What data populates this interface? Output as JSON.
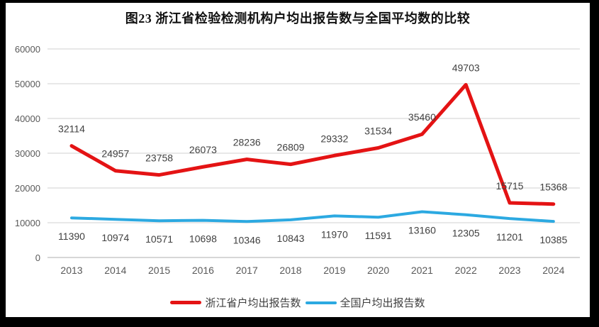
{
  "frame": {
    "outer_background": "#000000",
    "canvas_background": "#ffffff"
  },
  "chart_data": {
    "type": "line",
    "title": "图23  浙江省检验检测机构户均出报告数与全国平均数的比较",
    "categories": [
      "2013",
      "2014",
      "2015",
      "2016",
      "2017",
      "2018",
      "2019",
      "2020",
      "2021",
      "2022",
      "2023",
      "2024"
    ],
    "series": [
      {
        "name": "浙江省户均出报告数",
        "color": "#E41314",
        "line_width": 5,
        "label_side": "above",
        "values": [
          32114,
          24957,
          23758,
          26073,
          28236,
          26809,
          29332,
          31534,
          35460,
          49703,
          15715,
          15368
        ]
      },
      {
        "name": "全国户均出报告数",
        "color": "#2CA9E1",
        "line_width": 4,
        "label_side": "below",
        "values": [
          11390,
          10974,
          10571,
          10698,
          10346,
          10843,
          11970,
          11591,
          13160,
          12305,
          11201,
          10385
        ]
      }
    ],
    "y_ticks": [
      0,
      10000,
      20000,
      30000,
      40000,
      50000,
      60000
    ],
    "ylim": [
      0,
      60000
    ],
    "xlabel": "",
    "ylabel": "",
    "grid": true,
    "legend_position": "bottom",
    "gridline_color": "#D9D9D9",
    "axis_line_color": "#BFBFBF",
    "tick_color": "#595959",
    "data_label_color": "#404040"
  }
}
